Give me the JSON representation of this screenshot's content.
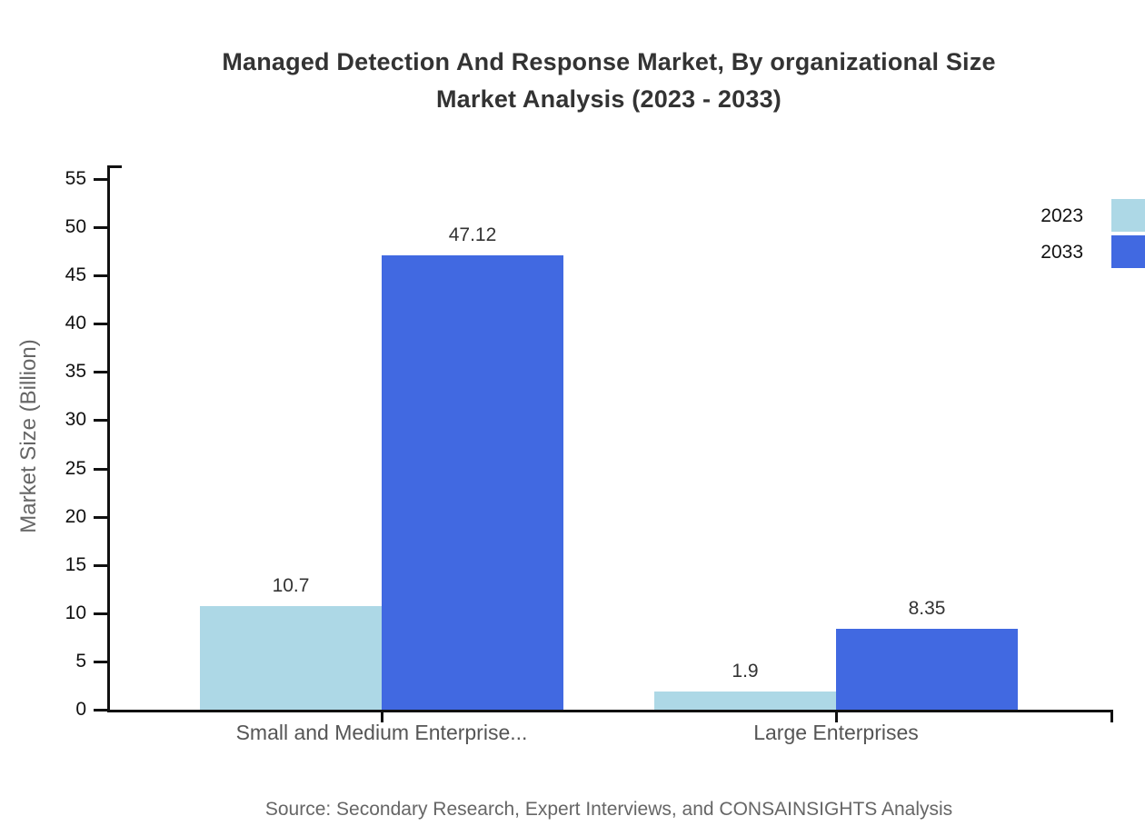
{
  "title": {
    "line1": "Managed Detection And Response Market, By organizational Size",
    "line2": "Market Analysis (2023 - 2033)"
  },
  "source_note": "Source: Secondary Research, Expert Interviews, and CONSAINSIGHTS Analysis",
  "chart_data": {
    "type": "bar",
    "title": "Managed Detection And Response Market, By organizational Size Market Analysis (2023 - 2033)",
    "title_lines": [
      "Managed Detection And Response Market, By organizational Size",
      "Market Analysis (2023 - 2033)"
    ],
    "categories": [
      "Small and Medium Enterprise...",
      "Large Enterprises"
    ],
    "series": [
      {
        "name": "2023",
        "color": "#ADD8E6",
        "values": [
          10.7,
          1.9
        ]
      },
      {
        "name": "2033",
        "color": "#4169E1",
        "values": [
          47.12,
          8.35
        ]
      }
    ],
    "bar_value_labels": [
      [
        "10.7",
        "1.9"
      ],
      [
        "47.12",
        "8.35"
      ]
    ],
    "xlabel": "",
    "ylabel": "Market Size (Billion)",
    "ylim": [
      0,
      55
    ],
    "yticks": [
      0,
      5,
      10,
      15,
      20,
      25,
      30,
      35,
      40,
      45,
      50,
      55
    ],
    "grid": false,
    "legend_position": "top-right",
    "axis_color": "#111111"
  }
}
